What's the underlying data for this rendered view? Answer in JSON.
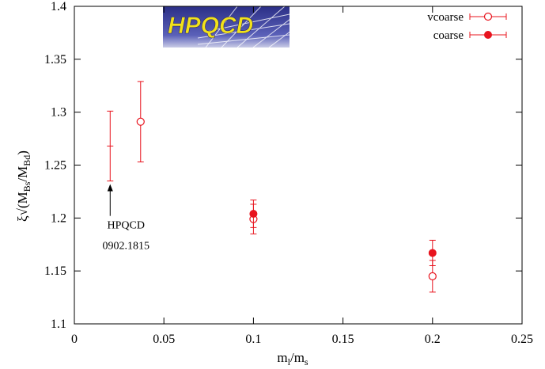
{
  "chart_data": {
    "type": "scatter",
    "title": "",
    "xlabel": "m_l/m_s",
    "ylabel": "ξ√(M_Bs/M_Bd)",
    "xlim": [
      0,
      0.25
    ],
    "ylim": [
      1.1,
      1.4
    ],
    "xticks": [
      0,
      0.05,
      0.1,
      0.15,
      0.2,
      0.25
    ],
    "xtick_labels": [
      "0",
      "0.05",
      "0.1",
      "0.15",
      "0.2",
      "0.25"
    ],
    "yticks": [
      1.1,
      1.15,
      1.2,
      1.25,
      1.3,
      1.35,
      1.4
    ],
    "ytick_labels": [
      "1.1",
      "1.15",
      "1.2",
      "1.25",
      "1.3",
      "1.35",
      "1.4"
    ],
    "grid": false,
    "legend_position": "top-right",
    "series": [
      {
        "name": "vcoarse",
        "marker": "open-circle",
        "color": "#e8141e",
        "points": [
          {
            "x": 0.037,
            "y": 1.291,
            "err": 0.038
          },
          {
            "x": 0.1,
            "y": 1.199,
            "err": 0.014
          },
          {
            "x": 0.2,
            "y": 1.145,
            "err": 0.015
          }
        ]
      },
      {
        "name": "coarse",
        "marker": "filled-circle",
        "color": "#e8141e",
        "points": [
          {
            "x": 0.1,
            "y": 1.204,
            "err": 0.013
          },
          {
            "x": 0.2,
            "y": 1.167,
            "err": 0.012
          }
        ]
      },
      {
        "name": "",
        "marker": "plus",
        "color": "#e8141e",
        "points": [
          {
            "x": 0.02,
            "y": 1.268,
            "err": 0.033
          }
        ]
      }
    ],
    "annotation": {
      "line1": "HPQCD",
      "line2": "0902.1815",
      "arrow_to": {
        "x": 0.02,
        "y": 1.232
      }
    },
    "logo_text": "HPQCD"
  }
}
